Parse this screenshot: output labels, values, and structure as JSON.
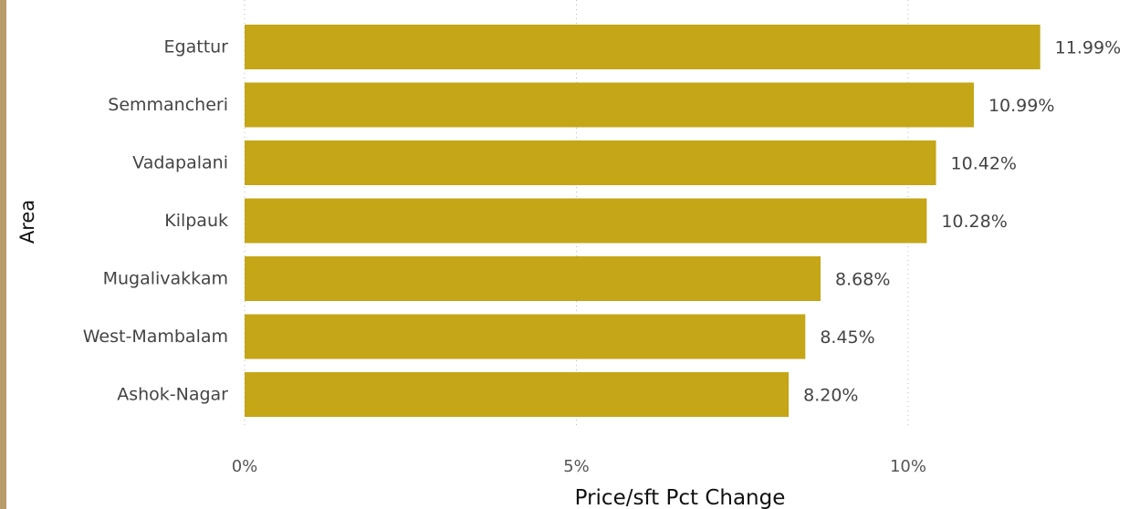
{
  "chart_data": {
    "type": "bar",
    "orientation": "horizontal",
    "categories": [
      "Egattur",
      "Semmancheri",
      "Vadapalani",
      "Kilpauk",
      "Mugalivakkam",
      "West-Mambalam",
      "Ashok-Nagar"
    ],
    "values": [
      11.99,
      10.99,
      10.42,
      10.28,
      8.68,
      8.45,
      8.2
    ],
    "value_labels": [
      "11.99%",
      "10.99%",
      "10.42%",
      "10.28%",
      "8.68%",
      "8.45%",
      "8.20%"
    ],
    "xlabel": "Price/sft Pct Change",
    "ylabel": "Area",
    "xlim": [
      0,
      12
    ],
    "xticks": [
      0,
      5,
      10
    ],
    "xtick_labels": [
      "0%",
      "5%",
      "10%"
    ],
    "grid": "vertical dotted",
    "bar_color": "#c4a617",
    "label_color_inside": "#ffffff",
    "label_color_outside": "#444444"
  }
}
